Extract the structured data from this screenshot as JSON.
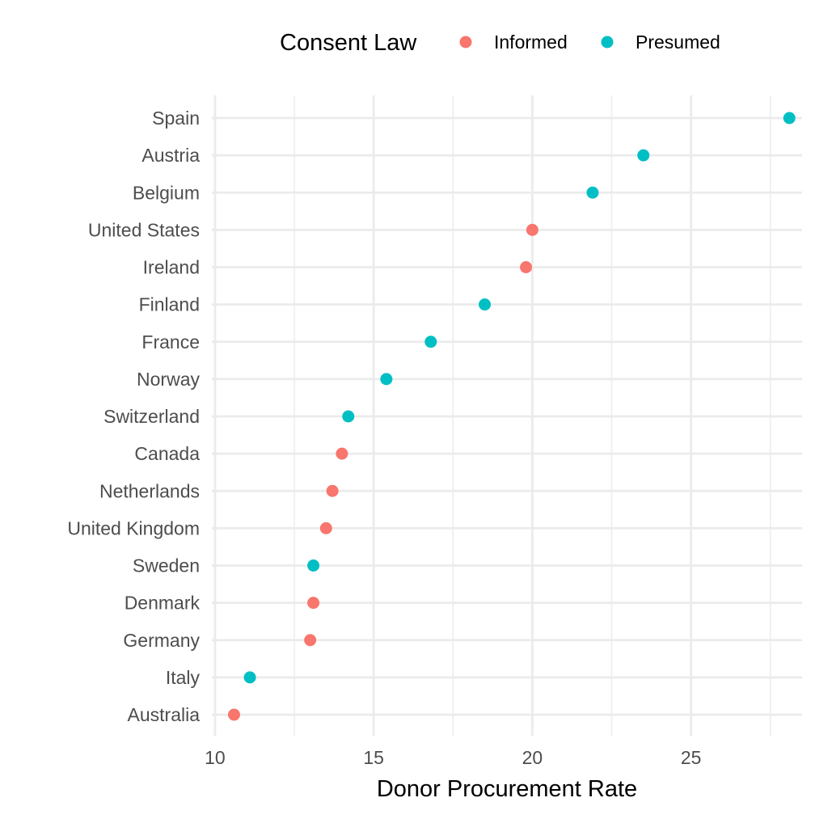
{
  "chart_data": {
    "type": "scatter",
    "title": "",
    "xlabel": "Donor Procurement Rate",
    "ylabel": "",
    "xlim": [
      9.9,
      28.5
    ],
    "x_ticks": [
      10,
      15,
      20,
      25
    ],
    "grid": true,
    "legend": {
      "title": "Consent Law",
      "placement": "top",
      "entries": [
        {
          "name": "Informed",
          "color": "#F8766D"
        },
        {
          "name": "Presumed",
          "color": "#00BFC4"
        }
      ]
    },
    "categories": [
      "Spain",
      "Austria",
      "Belgium",
      "United States",
      "Ireland",
      "Finland",
      "France",
      "Norway",
      "Switzerland",
      "Canada",
      "Netherlands",
      "United Kingdom",
      "Sweden",
      "Denmark",
      "Germany",
      "Italy",
      "Australia"
    ],
    "points": [
      {
        "country": "Spain",
        "value": 28.1,
        "consent": "Presumed"
      },
      {
        "country": "Austria",
        "value": 23.5,
        "consent": "Presumed"
      },
      {
        "country": "Belgium",
        "value": 21.9,
        "consent": "Presumed"
      },
      {
        "country": "United States",
        "value": 20.0,
        "consent": "Informed"
      },
      {
        "country": "Ireland",
        "value": 19.8,
        "consent": "Informed"
      },
      {
        "country": "Finland",
        "value": 18.5,
        "consent": "Presumed"
      },
      {
        "country": "France",
        "value": 16.8,
        "consent": "Presumed"
      },
      {
        "country": "Norway",
        "value": 15.4,
        "consent": "Presumed"
      },
      {
        "country": "Switzerland",
        "value": 14.2,
        "consent": "Presumed"
      },
      {
        "country": "Canada",
        "value": 14.0,
        "consent": "Informed"
      },
      {
        "country": "Netherlands",
        "value": 13.7,
        "consent": "Informed"
      },
      {
        "country": "United Kingdom",
        "value": 13.5,
        "consent": "Informed"
      },
      {
        "country": "Sweden",
        "value": 13.1,
        "consent": "Presumed"
      },
      {
        "country": "Denmark",
        "value": 13.1,
        "consent": "Informed"
      },
      {
        "country": "Germany",
        "value": 13.0,
        "consent": "Informed"
      },
      {
        "country": "Italy",
        "value": 11.1,
        "consent": "Presumed"
      },
      {
        "country": "Australia",
        "value": 10.6,
        "consent": "Informed"
      }
    ]
  }
}
